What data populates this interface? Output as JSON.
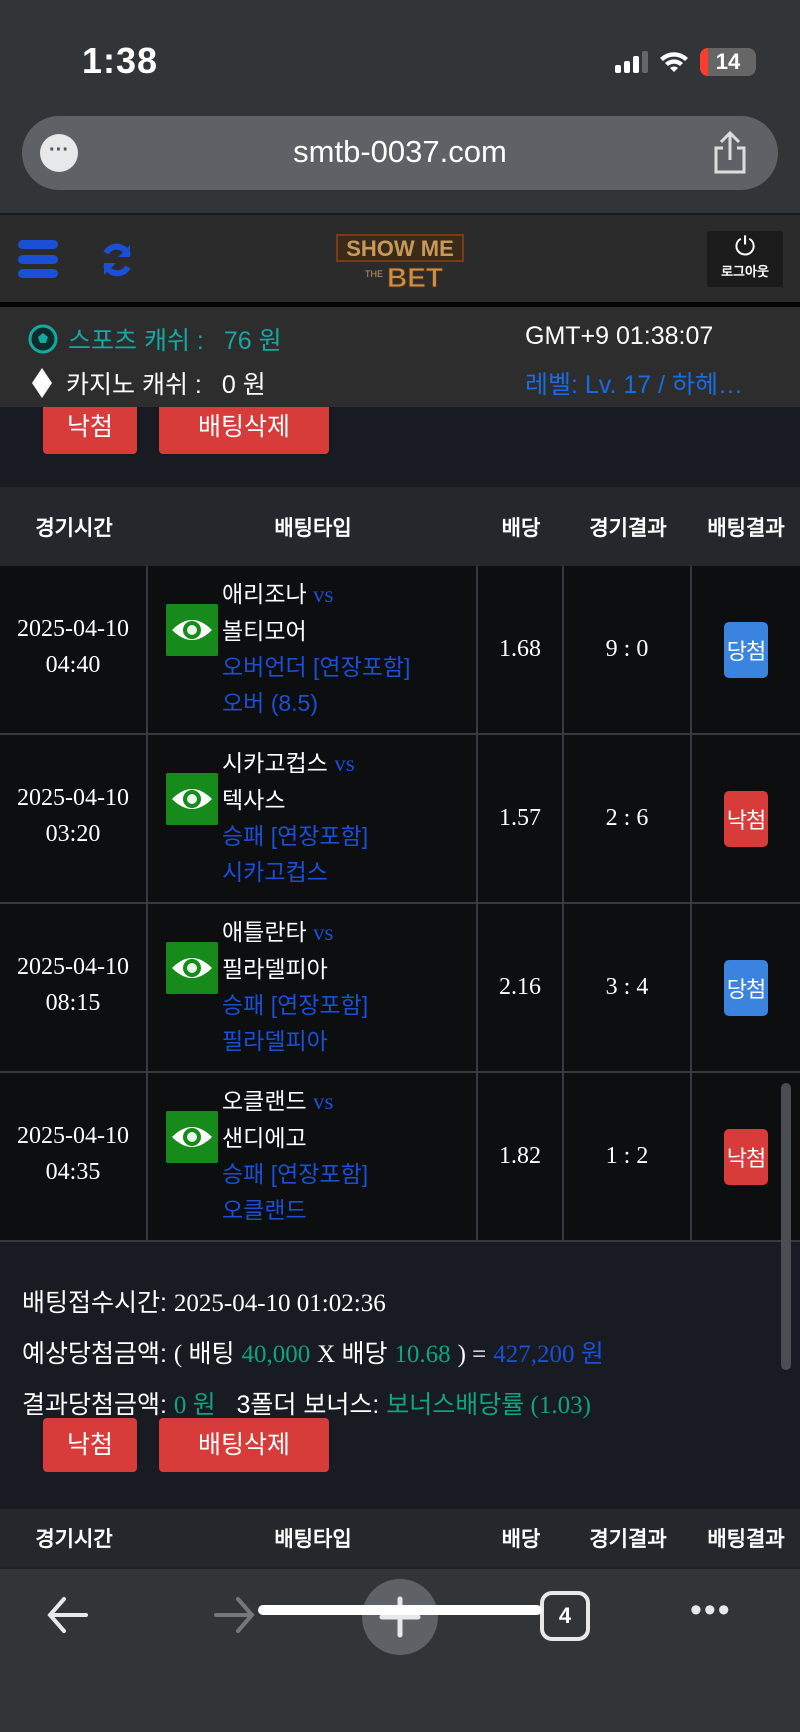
{
  "status_bar": {
    "time": "1:38",
    "battery": "14"
  },
  "browser": {
    "url": "smtb-0037.com",
    "tab_count": "4"
  },
  "header": {
    "logo_text": "SHOW ME THE BET",
    "logout_label": "로그아웃"
  },
  "info": {
    "sports_cash_label": "스포츠 캐쉬 :",
    "sports_cash_value": "76 원",
    "casino_cash_label": "카지노 캐쉬 :",
    "casino_cash_value": "0 원",
    "clock": "GMT+9 01:38:07",
    "level": "레벨: Lv. 17 / 하헤…"
  },
  "top_buttons": {
    "lose": "낙첨",
    "delete": "배팅삭제"
  },
  "table": {
    "headers": [
      "경기시간",
      "배팅타입",
      "배당",
      "경기결과",
      "배팅결과"
    ],
    "rows": [
      {
        "date": "2025-04-10",
        "time": "04:40",
        "home": "애리조나",
        "vs": "vs",
        "away": "볼티모어",
        "market": "오버언더 [연장포함]",
        "pick": "오버 (8.5)",
        "odds": "1.68",
        "score": "9 : 0",
        "result": "당첨",
        "result_color": "#3a84e0"
      },
      {
        "date": "2025-04-10",
        "time": "03:20",
        "home": "시카고컵스",
        "vs": "vs",
        "away": "텍사스",
        "market": "승패 [연장포함]",
        "pick": "시카고컵스",
        "odds": "1.57",
        "score": "2 : 6",
        "result": "낙첨",
        "result_color": "#d83c3a"
      },
      {
        "date": "2025-04-10",
        "time": "08:15",
        "home": "애틀란타",
        "vs": "vs",
        "away": "필라델피아",
        "market": "승패 [연장포함]",
        "pick": "필라델피아",
        "odds": "2.16",
        "score": "3 : 4",
        "result": "당첨",
        "result_color": "#3a84e0"
      },
      {
        "date": "2025-04-10",
        "time": "04:35",
        "home": "오클랜드",
        "vs": "vs",
        "away": "샌디에고",
        "market": "승패 [연장포함]",
        "pick": "오클랜드",
        "odds": "1.82",
        "score": "1 : 2",
        "result": "낙첨",
        "result_color": "#d83c3a"
      }
    ]
  },
  "summary": {
    "received_label": "배팅접수시간:",
    "received_value": "2025-04-10 01:02:36",
    "expected_label": "예상당첨금액:",
    "open_paren": "( 배팅",
    "bet_amount": "40,000",
    "times": "X 배당",
    "total_odds": "10.68",
    "equals": ") =",
    "expected_value": "427,200 원",
    "result_label": "결과당첨금액:",
    "result_value": "0 원",
    "bonus_label": "3폴더 보너스:",
    "bonus_value": "보너스배당률 (1.03)"
  },
  "bottom_buttons": {
    "lose": "낙첨",
    "delete": "배팅삭제"
  },
  "colors": {
    "accent_blue": "#1a4fd6",
    "win": "#3a84e0",
    "lose": "#d83c3a",
    "teal": "#14a9a0",
    "green": "#0fa37f",
    "eye_green": "#178a1c"
  }
}
